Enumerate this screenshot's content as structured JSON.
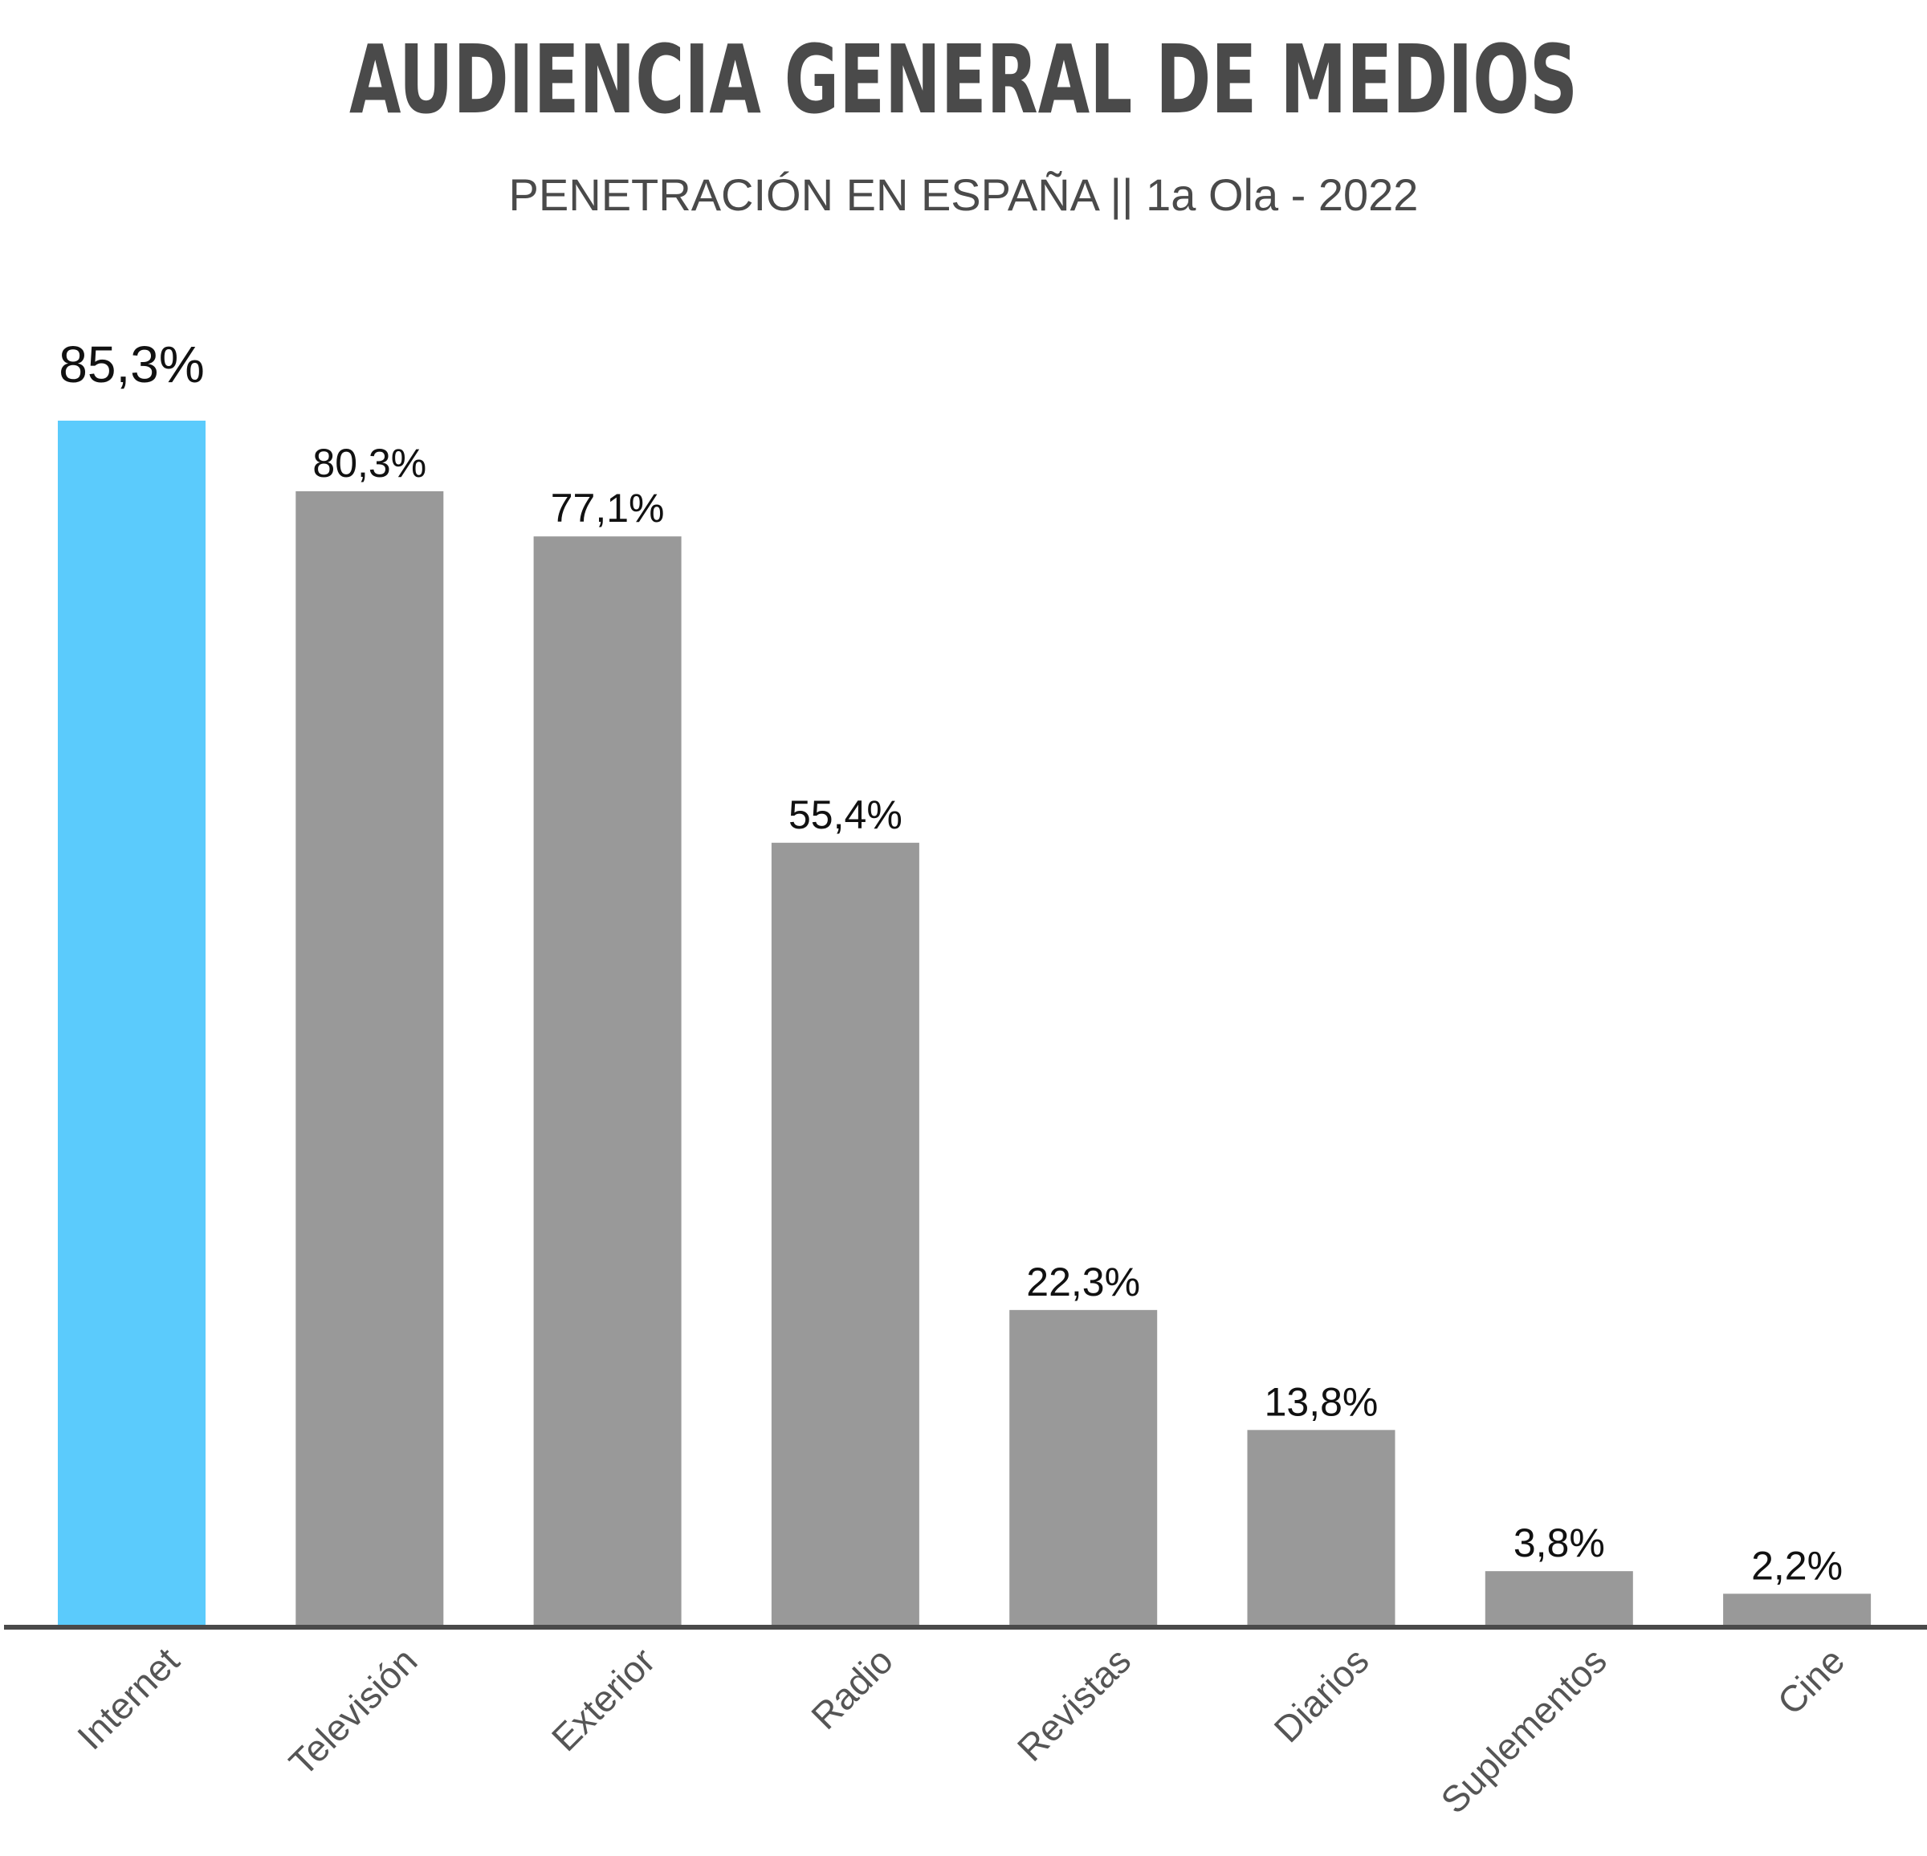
{
  "chart_data": {
    "type": "bar",
    "title": "AUDIENCIA GENERAL DE MEDIOS",
    "subtitle": "PENETRACIÓN EN ESPAÑA || 1a Ola - 2022",
    "xlabel": "",
    "ylabel": "",
    "ylim": [
      0,
      85.3
    ],
    "grid": false,
    "legend": "none",
    "categories": [
      "Internet",
      "Televisión",
      "Exterior",
      "Radio",
      "Revistas",
      "Diarios",
      "Suplementos",
      "Cine"
    ],
    "values": [
      85.3,
      80.3,
      77.1,
      55.4,
      22.3,
      13.8,
      3.8,
      2.2
    ],
    "value_labels": [
      "85,3%",
      "80,3%",
      "77,1%",
      "55,4%",
      "22,3%",
      "13,8%",
      "3,8%",
      "2,2%"
    ],
    "highlight_index": 0,
    "colors": {
      "highlight": "#5bcbfc",
      "bar": "#999999",
      "axis": "#4a4a4a",
      "title": "#4a4a4a",
      "label": "#111111",
      "category": "#555555"
    }
  }
}
